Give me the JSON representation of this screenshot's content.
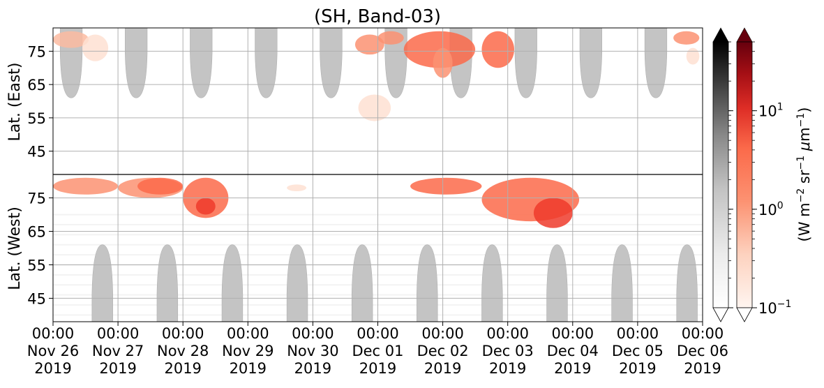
{
  "chart_data": {
    "type": "heatmap",
    "title": "(SH, Band-03)",
    "x_ticks": [
      {
        "time": "00:00",
        "date": "Nov 26",
        "year": "2019"
      },
      {
        "time": "00:00",
        "date": "Nov 27",
        "year": "2019"
      },
      {
        "time": "00:00",
        "date": "Nov 28",
        "year": "2019"
      },
      {
        "time": "00:00",
        "date": "Nov 29",
        "year": "2019"
      },
      {
        "time": "00:00",
        "date": "Nov 30",
        "year": "2019"
      },
      {
        "time": "00:00",
        "date": "Dec 01",
        "year": "2019"
      },
      {
        "time": "00:00",
        "date": "Dec 02",
        "year": "2019"
      },
      {
        "time": "00:00",
        "date": "Dec 03",
        "year": "2019"
      },
      {
        "time": "00:00",
        "date": "Dec 04",
        "year": "2019"
      },
      {
        "time": "00:00",
        "date": "Dec 05",
        "year": "2019"
      },
      {
        "time": "00:00",
        "date": "Dec 06",
        "year": "2019"
      }
    ],
    "x_range": [
      "2019-11-26 00:00",
      "2019-12-06 00:00"
    ],
    "east_panel": {
      "ylabel": "Lat. (East)",
      "y_ticks": [
        "45",
        "55",
        "65",
        "75"
      ],
      "y_range": [
        38,
        82
      ]
    },
    "west_panel": {
      "ylabel": "Lat. (West)",
      "y_ticks": [
        "75",
        "65",
        "55",
        "45"
      ],
      "y_range": [
        82,
        38
      ]
    },
    "grid": true,
    "colorbar_gray": {
      "colormap": "Greys",
      "scale": "log",
      "range": [
        0.1,
        50
      ],
      "extend": "both",
      "over_color": "#000000",
      "under_color": "#ffffff"
    },
    "colorbar_red": {
      "colormap": "Reds",
      "scale": "log",
      "range": [
        0.1,
        50
      ],
      "extend": "both",
      "over_color": "#67000d",
      "under_color": "#ffffff",
      "tick_labels": [
        {
          "base": "10",
          "exp": "1"
        },
        {
          "base": "10",
          "exp": "0"
        },
        {
          "base": "10",
          "exp": "−1"
        }
      ],
      "tick_values": [
        10,
        1,
        0.1
      ]
    },
    "colorbar_label": {
      "lead": "(W m",
      "e1": "−2",
      "mid1": " sr",
      "e2": "−1",
      "mid2": " ",
      "mu": "μ",
      "mid3": "m",
      "e3": "−1",
      "tail": ")"
    },
    "gray_regions_east": [
      {
        "center_day": 0.28,
        "half_width_days": 0.17,
        "lat_tip": 61
      },
      {
        "center_day": 1.28,
        "half_width_days": 0.17,
        "lat_tip": 61
      },
      {
        "center_day": 2.28,
        "half_width_days": 0.17,
        "lat_tip": 61
      },
      {
        "center_day": 3.28,
        "half_width_days": 0.17,
        "lat_tip": 61
      },
      {
        "center_day": 4.28,
        "half_width_days": 0.17,
        "lat_tip": 61
      },
      {
        "center_day": 5.28,
        "half_width_days": 0.17,
        "lat_tip": 61
      },
      {
        "center_day": 6.28,
        "half_width_days": 0.17,
        "lat_tip": 61
      },
      {
        "center_day": 7.28,
        "half_width_days": 0.17,
        "lat_tip": 61
      },
      {
        "center_day": 8.28,
        "half_width_days": 0.17,
        "lat_tip": 61
      },
      {
        "center_day": 9.28,
        "half_width_days": 0.17,
        "lat_tip": 61
      }
    ],
    "gray_regions_west": [
      {
        "center_day": 0.76,
        "half_width_days": 0.16,
        "lat_tip": 61
      },
      {
        "center_day": 1.76,
        "half_width_days": 0.16,
        "lat_tip": 61
      },
      {
        "center_day": 2.76,
        "half_width_days": 0.16,
        "lat_tip": 61
      },
      {
        "center_day": 3.76,
        "half_width_days": 0.16,
        "lat_tip": 61
      },
      {
        "center_day": 4.76,
        "half_width_days": 0.16,
        "lat_tip": 61
      },
      {
        "center_day": 5.76,
        "half_width_days": 0.16,
        "lat_tip": 61
      },
      {
        "center_day": 6.76,
        "half_width_days": 0.16,
        "lat_tip": 61
      },
      {
        "center_day": 7.76,
        "half_width_days": 0.16,
        "lat_tip": 61
      },
      {
        "center_day": 8.76,
        "half_width_days": 0.16,
        "lat_tip": 61
      },
      {
        "center_day": 9.76,
        "half_width_days": 0.16,
        "lat_tip": 61
      }
    ],
    "emission_patches": [
      {
        "panel": "east",
        "t0": 0.0,
        "t1": 0.55,
        "lat0": 76,
        "lat1": 81,
        "value": 0.6
      },
      {
        "panel": "east",
        "t0": 0.45,
        "t1": 0.85,
        "lat0": 72,
        "lat1": 80,
        "value": 0.3
      },
      {
        "panel": "east",
        "t0": 4.7,
        "t1": 5.2,
        "lat0": 54,
        "lat1": 62,
        "value": 0.2
      },
      {
        "panel": "east",
        "t0": 4.65,
        "t1": 5.1,
        "lat0": 74,
        "lat1": 80,
        "value": 1.2
      },
      {
        "panel": "east",
        "t0": 5.0,
        "t1": 5.4,
        "lat0": 77,
        "lat1": 81,
        "value": 1.5
      },
      {
        "panel": "east",
        "t0": 5.4,
        "t1": 6.5,
        "lat0": 70,
        "lat1": 81,
        "value": 3.0
      },
      {
        "panel": "east",
        "t0": 5.85,
        "t1": 6.15,
        "lat0": 67,
        "lat1": 76,
        "value": 1.5
      },
      {
        "panel": "east",
        "t0": 6.6,
        "t1": 7.1,
        "lat0": 70,
        "lat1": 81,
        "value": 2.5
      },
      {
        "panel": "east",
        "t0": 9.55,
        "t1": 9.95,
        "lat0": 77,
        "lat1": 81,
        "value": 1.2
      },
      {
        "panel": "east",
        "t0": 9.75,
        "t1": 9.95,
        "lat0": 71,
        "lat1": 76,
        "value": 0.3
      },
      {
        "panel": "west",
        "t0": 0.0,
        "t1": 1.0,
        "lat0": 76,
        "lat1": 81,
        "value": 1.0
      },
      {
        "panel": "west",
        "t0": 1.0,
        "t1": 2.0,
        "lat0": 75,
        "lat1": 81,
        "value": 0.8
      },
      {
        "panel": "west",
        "t0": 1.3,
        "t1": 2.0,
        "lat0": 76,
        "lat1": 81,
        "value": 2.0
      },
      {
        "panel": "west",
        "t0": 2.0,
        "t1": 2.7,
        "lat0": 69,
        "lat1": 81,
        "value": 2.0
      },
      {
        "panel": "west",
        "t0": 2.2,
        "t1": 2.5,
        "lat0": 70,
        "lat1": 75,
        "value": 4.0
      },
      {
        "panel": "west",
        "t0": 3.6,
        "t1": 3.9,
        "lat0": 77,
        "lat1": 79,
        "value": 0.3
      },
      {
        "panel": "west",
        "t0": 5.5,
        "t1": 6.6,
        "lat0": 76,
        "lat1": 81,
        "value": 2.5
      },
      {
        "panel": "west",
        "t0": 6.6,
        "t1": 8.1,
        "lat0": 68,
        "lat1": 81,
        "value": 2.5
      },
      {
        "panel": "west",
        "t0": 7.4,
        "t1": 8.0,
        "lat0": 66,
        "lat1": 75,
        "value": 4.0
      }
    ]
  }
}
